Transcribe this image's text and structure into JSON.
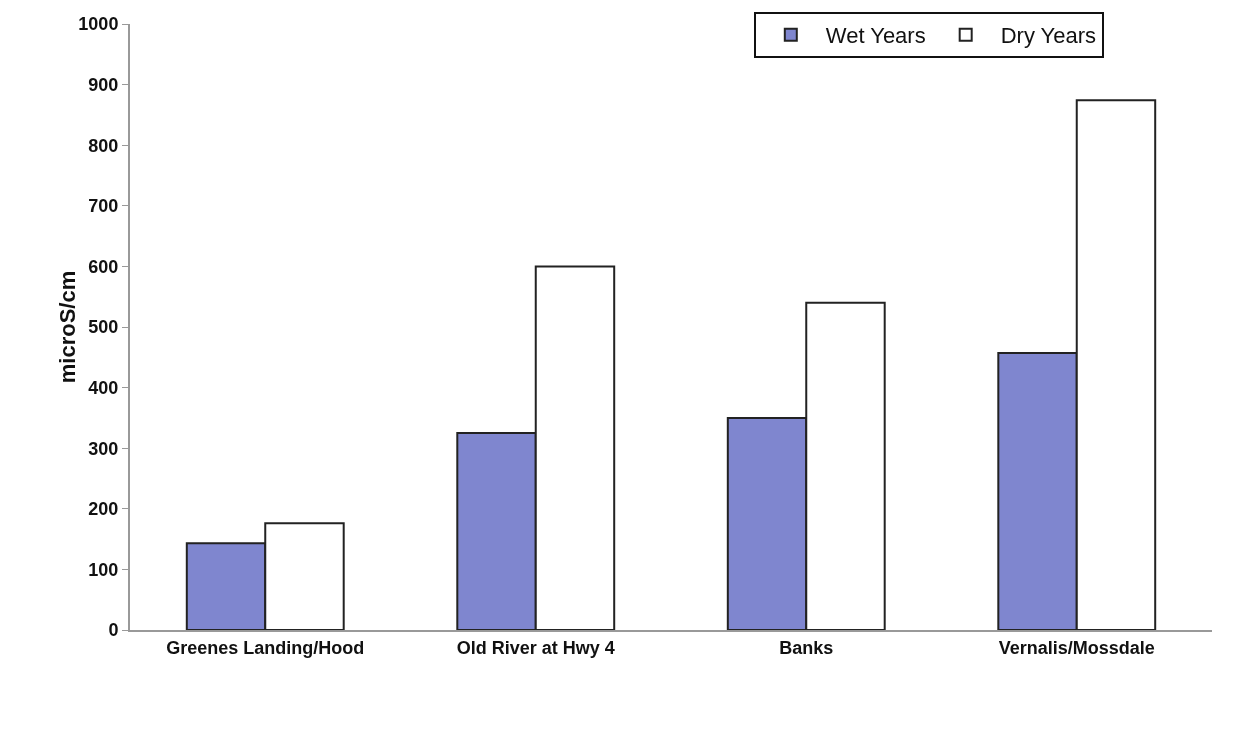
{
  "chart_data": {
    "type": "bar",
    "ylabel": "microS/cm",
    "categories": [
      "Greenes Landing/Hood",
      "Old River at Hwy 4",
      "Banks",
      "Vernalis/Mossdale"
    ],
    "series": [
      {
        "name": "Wet Years",
        "color": "#7f86cf",
        "values": [
          143,
          325,
          350,
          457
        ]
      },
      {
        "name": "Dry Years",
        "color": "#ffffff",
        "values": [
          176,
          600,
          540,
          874
        ]
      }
    ],
    "ylim": [
      0,
      1000
    ],
    "yticks": [
      0,
      100,
      200,
      300,
      400,
      500,
      600,
      700,
      800,
      900,
      1000
    ],
    "grid": false,
    "legend": "top right"
  }
}
